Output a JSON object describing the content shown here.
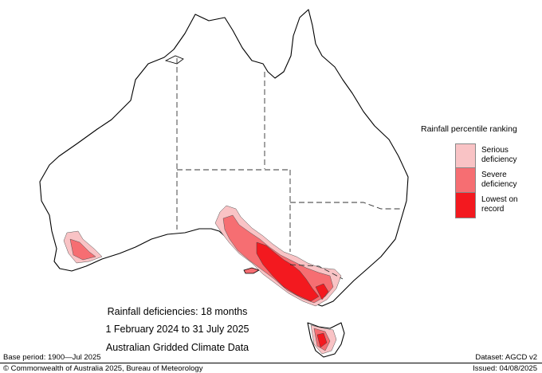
{
  "legend": {
    "title": "Rainfall percentile ranking",
    "items": [
      {
        "label": "Serious deficiency",
        "color": "#f9c3c5"
      },
      {
        "label": "Severe deficiency",
        "color": "#f66e72"
      },
      {
        "label": "Lowest on record",
        "color": "#f3191f"
      }
    ]
  },
  "caption": {
    "title": "Rainfall deficiencies: 18 months",
    "period": "1 February 2024 to 31 July 2025",
    "source": "Australian Gridded Climate Data"
  },
  "footer": {
    "base_period": "Base period: 1900—Jul 2025",
    "dataset": "Dataset: AGCD v2",
    "copyright": "© Commonwealth of Australia 2025, Bureau of Meteorology",
    "issued": "Issued: 04/08/2025"
  }
}
